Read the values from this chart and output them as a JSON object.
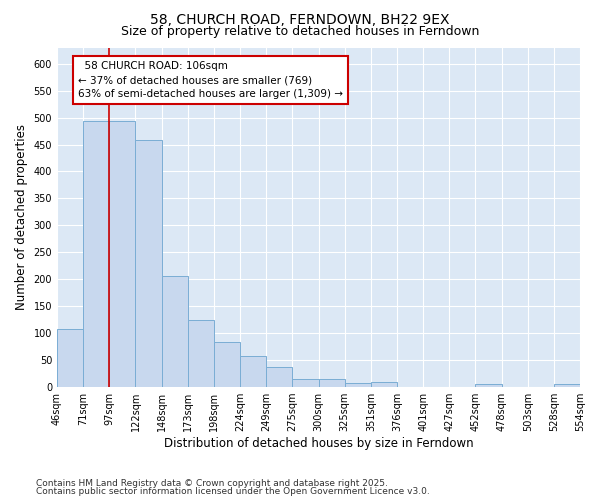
{
  "title": "58, CHURCH ROAD, FERNDOWN, BH22 9EX",
  "subtitle": "Size of property relative to detached houses in Ferndown",
  "xlabel": "Distribution of detached houses by size in Ferndown",
  "ylabel": "Number of detached properties",
  "categories": [
    "46sqm",
    "71sqm",
    "97sqm",
    "122sqm",
    "148sqm",
    "173sqm",
    "198sqm",
    "224sqm",
    "249sqm",
    "275sqm",
    "300sqm",
    "325sqm",
    "351sqm",
    "376sqm",
    "401sqm",
    "427sqm",
    "452sqm",
    "478sqm",
    "503sqm",
    "528sqm",
    "554sqm"
  ],
  "bar_heights": [
    107,
    493,
    493,
    459,
    207,
    124,
    83,
    57,
    38,
    15,
    15,
    8,
    10,
    0,
    0,
    0,
    5,
    0,
    0,
    5,
    0
  ],
  "bar_color": "#c8d8ee",
  "bar_edge_color": "#7aadd4",
  "marker_label": "58 CHURCH ROAD: 106sqm",
  "marker_line1": "← 37% of detached houses are smaller (769)",
  "marker_line2": "63% of semi-detached houses are larger (1,309) →",
  "annotation_box_color": "#cc0000",
  "ylim": [
    0,
    630
  ],
  "yticks": [
    0,
    50,
    100,
    150,
    200,
    250,
    300,
    350,
    400,
    450,
    500,
    550,
    600
  ],
  "footnote1": "Contains HM Land Registry data © Crown copyright and database right 2025.",
  "footnote2": "Contains public sector information licensed under the Open Government Licence v3.0.",
  "fig_bg_color": "#ffffff",
  "plot_bg_color": "#dce8f5",
  "grid_color": "#ffffff",
  "title_fontsize": 10,
  "subtitle_fontsize": 9,
  "tick_fontsize": 7,
  "label_fontsize": 8.5,
  "annotation_fontsize": 7.5,
  "footnote_fontsize": 6.5
}
